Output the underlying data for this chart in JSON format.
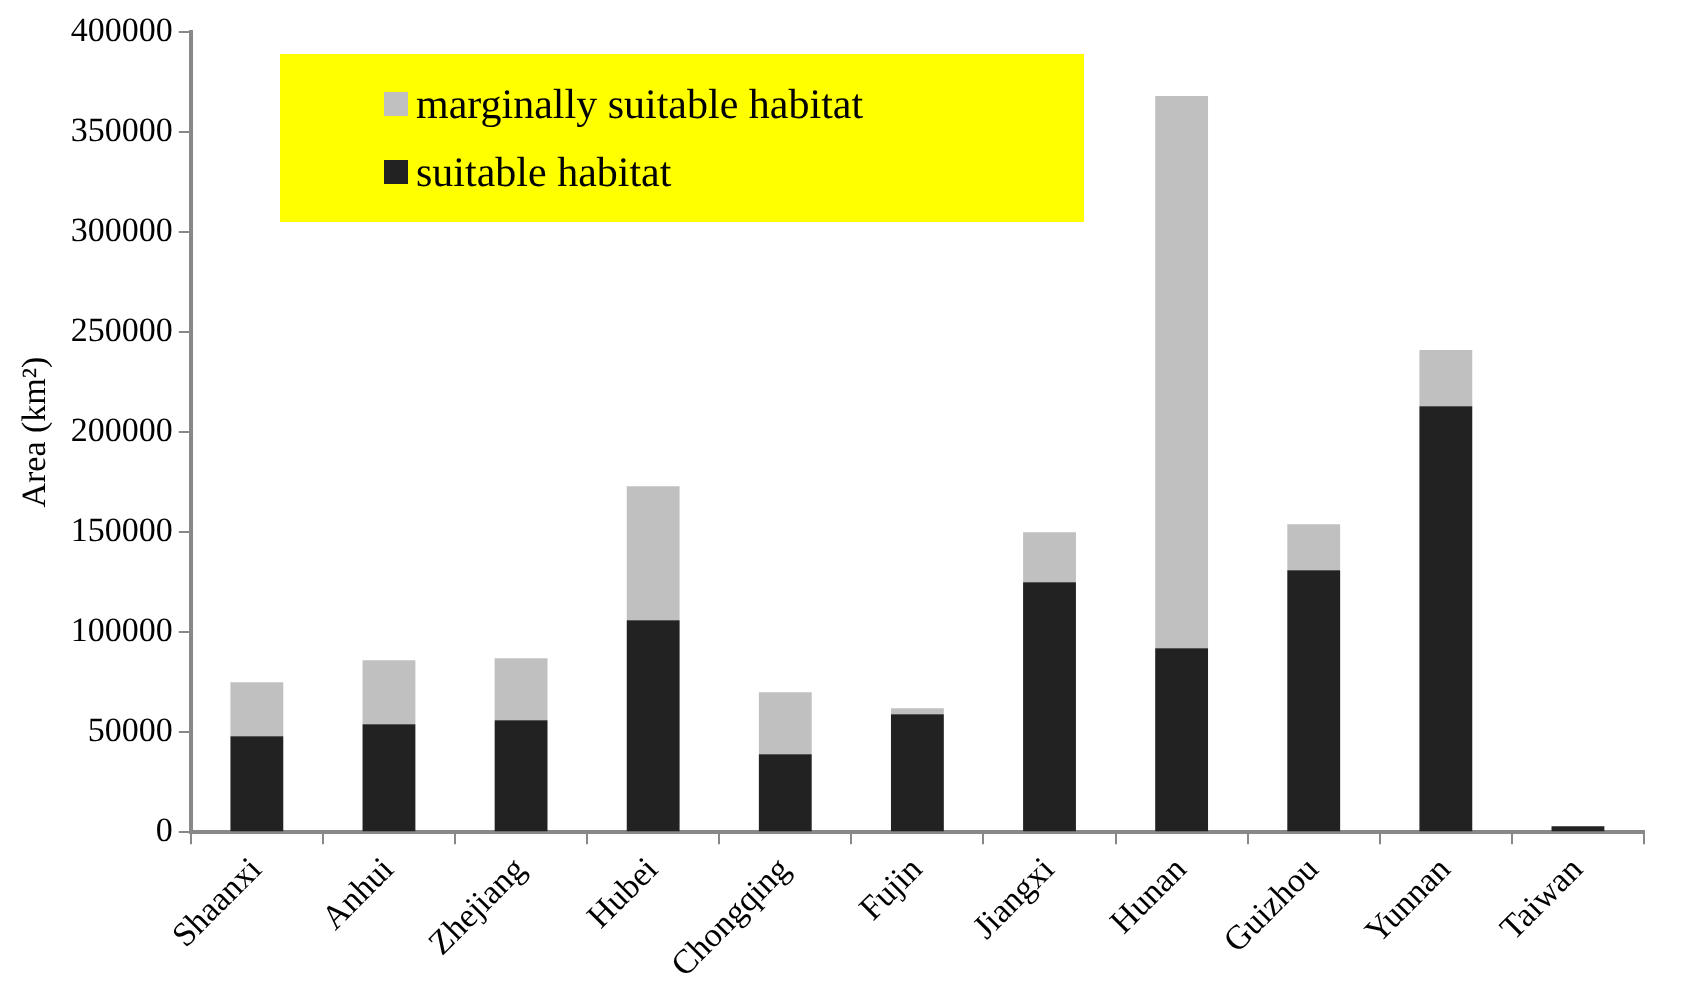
{
  "chart_data": {
    "type": "bar",
    "ylabel": "Area (km²)",
    "stacked": true,
    "legend": "top left",
    "grid": false,
    "categories": [
      "Shaanxi",
      "Anhui",
      "Zhejiang",
      "Hubei",
      "Chongqing",
      "Fujin",
      "Jiangxi",
      "Hunan",
      "Guizhou",
      "Yunnan",
      "Taiwan"
    ],
    "series": [
      {
        "name": "suitable habitat",
        "color": "#222222",
        "values": [
          48000,
          54000,
          56000,
          106000,
          39000,
          59000,
          125000,
          92000,
          131000,
          213000,
          3000
        ]
      },
      {
        "name": "marginally suitable habitat",
        "color": "#c0c0c0",
        "values": [
          27000,
          32000,
          31000,
          67000,
          31000,
          3000,
          25000,
          276000,
          23000,
          28000,
          0
        ]
      }
    ],
    "ylim": [
      0,
      400000
    ],
    "yticks": [
      0,
      50000,
      100000,
      150000,
      200000,
      250000,
      300000,
      350000,
      400000
    ]
  }
}
